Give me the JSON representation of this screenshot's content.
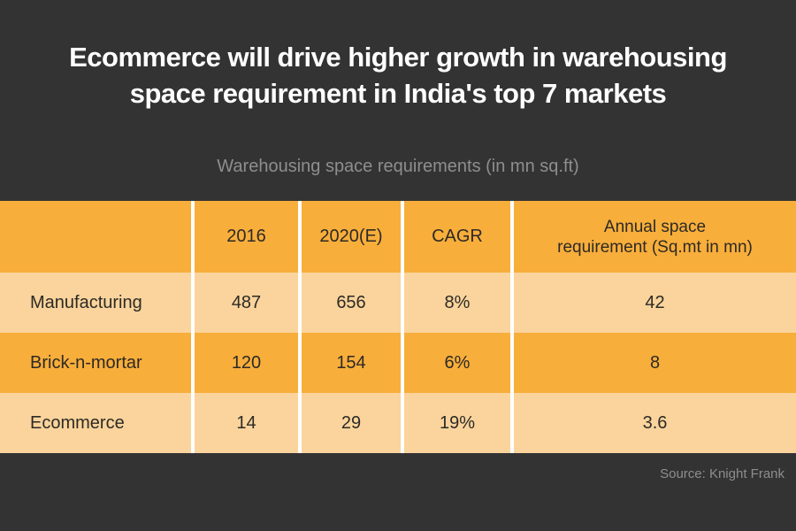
{
  "colors": {
    "background": "#333333",
    "orange_dark": "#f8ae3b",
    "orange_light": "#fad49c",
    "divider": "#ffffff",
    "title_text": "#ffffff",
    "muted_text": "#8e8e8e",
    "table_text": "#2d2a25"
  },
  "header": {
    "title_line1": "Ecommerce will drive higher growth in warehousing",
    "title_line2": "space requirement in India's top 7 markets",
    "subtitle": "Warehousing space requirements (in mn sq.ft)"
  },
  "table": {
    "col_headers": {
      "category": "",
      "y2016": "2016",
      "y2020": "2020(E)",
      "cagr": "CAGR",
      "annual_line1": "Annual space",
      "annual_line2": "requirement (Sq.mt in mn)"
    },
    "rows": [
      {
        "label": "Manufacturing",
        "y2016": "487",
        "y2020": "656",
        "cagr": "8%",
        "annual": "42"
      },
      {
        "label": "Brick-n-mortar",
        "y2016": "120",
        "y2020": "154",
        "cagr": "6%",
        "annual": "8"
      },
      {
        "label": "Ecommerce",
        "y2016": "14",
        "y2020": "29",
        "cagr": "19%",
        "annual": "3.6"
      }
    ]
  },
  "footer": {
    "source": "Source: Knight Frank"
  },
  "chart_data": {
    "type": "table",
    "title": "Ecommerce will drive higher growth in warehousing space requirement in India's top 7 markets",
    "subtitle": "Warehousing space requirements (in mn sq.ft)",
    "columns": [
      "",
      "2016",
      "2020(E)",
      "CAGR",
      "Annual space requirement (Sq.mt in mn)"
    ],
    "rows": [
      [
        "Manufacturing",
        487,
        656,
        "8%",
        42
      ],
      [
        "Brick-n-mortar",
        120,
        154,
        "6%",
        8
      ],
      [
        "Ecommerce",
        14,
        29,
        "19%",
        3.6
      ]
    ],
    "source": "Source: Knight Frank",
    "legend": false,
    "grid": false
  }
}
